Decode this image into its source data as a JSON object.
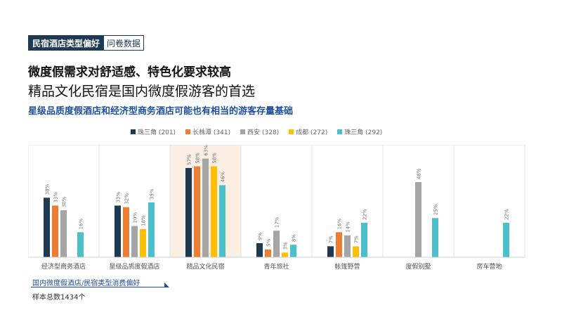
{
  "header": {
    "tag_primary": "民宿酒店类型偏好",
    "tag_secondary": "问卷数据",
    "headline": "微度假需求对舒适感、特色化要求较高",
    "subheadline": "精品文化民宿是国内微度假游客的首选",
    "insight": "星级品质度假酒店和经济型商务酒店可能也有相当的游客存量基础"
  },
  "footer": {
    "note": "国内微度假酒店/民宿类型消费偏好",
    "sample": "样本总数1434个"
  },
  "chart_data": {
    "type": "bar",
    "categories": [
      "经济型商务酒店",
      "星级品质度假酒店",
      "精品文化民宿",
      "青年旅社",
      "帐篷野营",
      "度假别墅",
      "房车营地"
    ],
    "series": [
      {
        "name": "珠三角 (201)",
        "color": "#1e3a52",
        "values": [
          38,
          33,
          57,
          9,
          7,
          null,
          null
        ]
      },
      {
        "name": "长株潭 (341)",
        "color": "#ed7d31",
        "values": [
          33,
          32,
          58,
          5,
          16,
          null,
          null
        ]
      },
      {
        "name": "西安 (328)",
        "color": "#a5a5a5",
        "values": [
          30,
          20,
          63,
          17,
          14,
          48,
          null
        ]
      },
      {
        "name": "成都 (272)",
        "color": "#ffc000",
        "values": [
          null,
          18,
          58,
          3,
          7,
          null,
          null
        ]
      },
      {
        "name": "珠三角 (292)",
        "color": "#4bbfca",
        "values": [
          16,
          35,
          46,
          8,
          22,
          25,
          22
        ]
      }
    ],
    "value_suffix": "%",
    "highlight_category": "精品文化民宿",
    "ylim": [
      0,
      70
    ],
    "grid": false,
    "legend_position": "top"
  }
}
